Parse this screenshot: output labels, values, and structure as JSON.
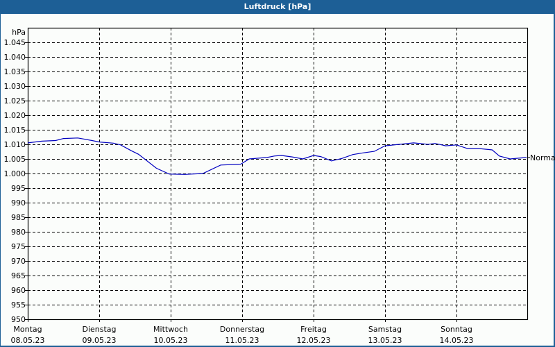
{
  "window": {
    "title": "Luftdruck [hPa]"
  },
  "colors": {
    "header": "#1d5f96",
    "background": "#fbfdfb",
    "line": "#0000c0",
    "grid": "#000000"
  },
  "chart_data": {
    "type": "line",
    "title": "Luftdruck [hPa]",
    "ylabel": "hPa",
    "xlabel": "",
    "ylim": [
      950,
      1050
    ],
    "grid": true,
    "y_ticks": [
      "950",
      "955",
      "960",
      "965",
      "970",
      "975",
      "980",
      "985",
      "990",
      "995",
      "1.000",
      "1.005",
      "1.010",
      "1.015",
      "1.020",
      "1.025",
      "1.030",
      "1.035",
      "1.040",
      "1.045"
    ],
    "x_ticks": [
      {
        "day": "Montag",
        "date": "08.05.23"
      },
      {
        "day": "Dienstag",
        "date": "09.05.23"
      },
      {
        "day": "Mittwoch",
        "date": "10.05.23"
      },
      {
        "day": "Donnerstag",
        "date": "11.05.23"
      },
      {
        "day": "Freitag",
        "date": "12.05.23"
      },
      {
        "day": "Samstag",
        "date": "13.05.23"
      },
      {
        "day": "Sonntag",
        "date": "14.05.23"
      }
    ],
    "annotations": [
      {
        "label": "Normal",
        "value": 1005.5
      }
    ],
    "series": [
      {
        "name": "Luftdruck",
        "x_days": [
          0,
          0.2,
          0.39,
          0.5,
          0.7,
          0.9,
          1.0,
          1.2,
          1.3,
          1.45,
          1.55,
          1.8,
          1.98,
          2.2,
          2.45,
          2.7,
          2.98,
          3.1,
          3.35,
          3.45,
          3.55,
          3.7,
          3.85,
          4.0,
          4.1,
          4.25,
          4.4,
          4.55,
          4.7,
          4.85,
          5.0,
          5.2,
          5.4,
          5.6,
          5.7,
          5.85,
          6.0,
          6.15,
          6.3,
          6.5,
          6.6,
          6.75,
          6.98
        ],
        "values": [
          1010.5,
          1011.1,
          1011.3,
          1012.0,
          1012.2,
          1011.3,
          1010.8,
          1010.4,
          1009.8,
          1007.8,
          1006.6,
          1001.8,
          999.8,
          999.7,
          1000.0,
          1002.9,
          1003.2,
          1005.0,
          1005.5,
          1006.0,
          1006.2,
          1005.7,
          1005.0,
          1006.2,
          1005.8,
          1004.3,
          1005.2,
          1006.5,
          1007.1,
          1007.6,
          1009.5,
          1010.0,
          1010.5,
          1010.0,
          1010.3,
          1009.5,
          1009.8,
          1008.6,
          1008.6,
          1008.1,
          1006.0,
          1005.0,
          1005.5
        ]
      }
    ]
  }
}
